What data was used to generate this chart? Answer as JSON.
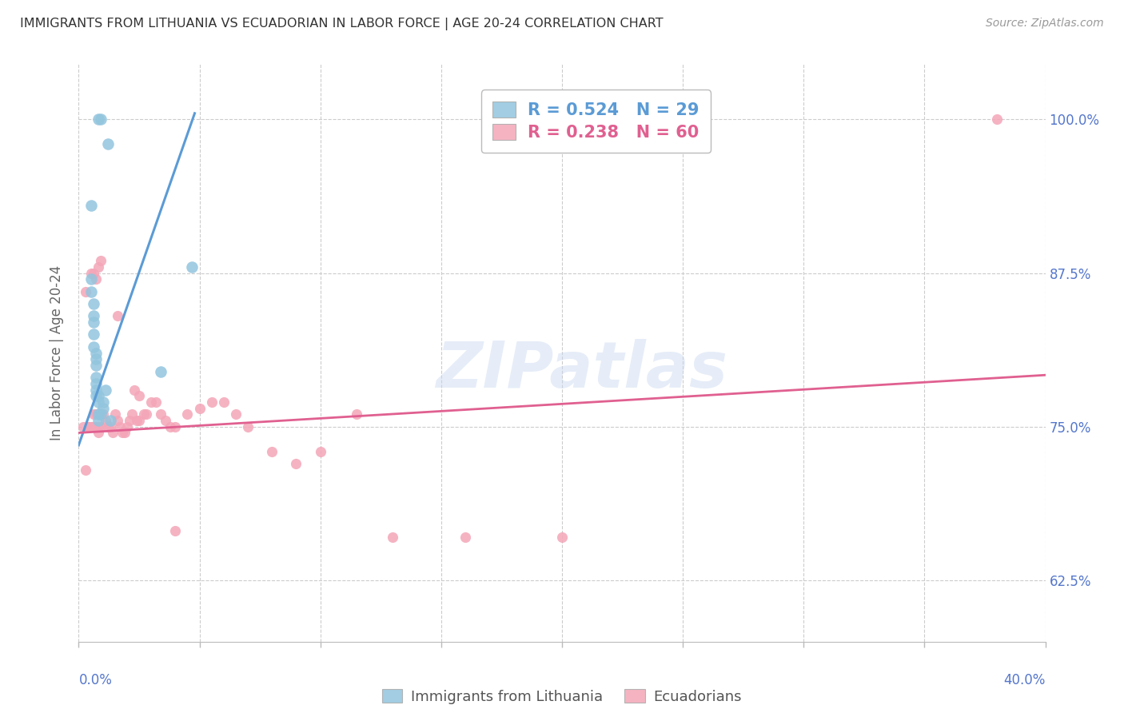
{
  "title": "IMMIGRANTS FROM LITHUANIA VS ECUADORIAN IN LABOR FORCE | AGE 20-24 CORRELATION CHART",
  "source": "Source: ZipAtlas.com",
  "ylabel": "In Labor Force | Age 20-24",
  "watermark": "ZIPatlas",
  "legend_blue": "R = 0.524   N = 29",
  "legend_pink": "R = 0.238   N = 60",
  "legend_label_blue": "Immigrants from Lithuania",
  "legend_label_pink": "Ecuadorians",
  "blue_color": "#92c5de",
  "pink_color": "#f4a6b8",
  "blue_line_color": "#5b9bd5",
  "pink_line_color": "#e06090",
  "axis_label_color": "#5577cc",
  "blue_scatter_x": [
    0.008,
    0.009,
    0.005,
    0.005,
    0.005,
    0.006,
    0.006,
    0.006,
    0.006,
    0.006,
    0.007,
    0.007,
    0.007,
    0.007,
    0.007,
    0.007,
    0.007,
    0.008,
    0.008,
    0.008,
    0.008,
    0.009,
    0.01,
    0.01,
    0.011,
    0.012,
    0.013,
    0.047,
    0.034
  ],
  "blue_scatter_y": [
    1.0,
    1.0,
    0.93,
    0.87,
    0.86,
    0.85,
    0.84,
    0.835,
    0.825,
    0.815,
    0.81,
    0.805,
    0.8,
    0.79,
    0.785,
    0.78,
    0.775,
    0.775,
    0.77,
    0.76,
    0.755,
    0.76,
    0.77,
    0.765,
    0.78,
    0.98,
    0.755,
    0.88,
    0.795
  ],
  "pink_scatter_x": [
    0.002,
    0.003,
    0.004,
    0.004,
    0.005,
    0.005,
    0.006,
    0.006,
    0.007,
    0.007,
    0.008,
    0.008,
    0.009,
    0.01,
    0.011,
    0.012,
    0.013,
    0.014,
    0.015,
    0.016,
    0.017,
    0.018,
    0.019,
    0.02,
    0.021,
    0.022,
    0.023,
    0.024,
    0.025,
    0.027,
    0.028,
    0.03,
    0.032,
    0.034,
    0.036,
    0.038,
    0.04,
    0.045,
    0.05,
    0.055,
    0.06,
    0.065,
    0.07,
    0.08,
    0.09,
    0.1,
    0.115,
    0.13,
    0.16,
    0.2,
    0.003,
    0.005,
    0.006,
    0.007,
    0.008,
    0.009,
    0.016,
    0.025,
    0.04,
    0.38
  ],
  "pink_scatter_y": [
    0.75,
    0.715,
    0.75,
    0.75,
    0.75,
    0.75,
    0.76,
    0.75,
    0.76,
    0.75,
    0.75,
    0.745,
    0.75,
    0.76,
    0.755,
    0.75,
    0.75,
    0.745,
    0.76,
    0.755,
    0.75,
    0.745,
    0.745,
    0.75,
    0.755,
    0.76,
    0.78,
    0.755,
    0.755,
    0.76,
    0.76,
    0.77,
    0.77,
    0.76,
    0.755,
    0.75,
    0.75,
    0.76,
    0.765,
    0.77,
    0.77,
    0.76,
    0.75,
    0.73,
    0.72,
    0.73,
    0.76,
    0.66,
    0.66,
    0.66,
    0.86,
    0.875,
    0.875,
    0.87,
    0.88,
    0.885,
    0.84,
    0.775,
    0.665,
    1.0
  ],
  "blue_line_x": [
    0.0,
    0.048
  ],
  "blue_line_y": [
    0.735,
    1.005
  ],
  "pink_line_x": [
    0.0,
    0.4
  ],
  "pink_line_y": [
    0.745,
    0.792
  ],
  "xlim": [
    0.0,
    0.4
  ],
  "ylim": [
    0.575,
    1.045
  ],
  "xticks": [
    0.0,
    0.05,
    0.1,
    0.15,
    0.2,
    0.25,
    0.3,
    0.35,
    0.4
  ],
  "yticks": [
    0.625,
    0.75,
    0.875,
    1.0
  ],
  "ytick_labels": [
    "62.5%",
    "75.0%",
    "87.5%",
    "100.0%"
  ]
}
